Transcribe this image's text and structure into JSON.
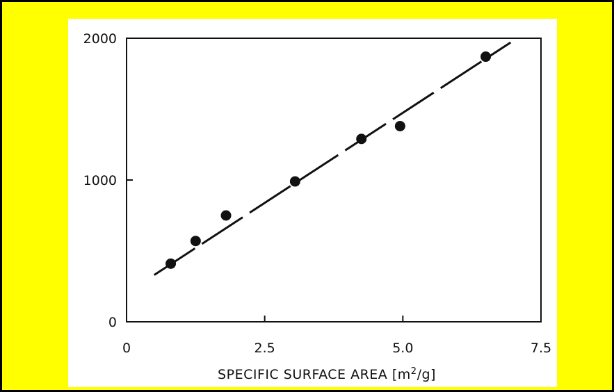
{
  "colors": {
    "background": "#ffff00",
    "plot_background": "#ffffff",
    "ink": "#111111"
  },
  "chart_data": {
    "type": "scatter",
    "xlabel_prefix": "SPECIFIC SURFACE AREA [m",
    "xlabel_sup": "2",
    "xlabel_suffix": "/g]",
    "ylabel": "",
    "xlim": [
      0,
      7.5
    ],
    "ylim": [
      0,
      2000
    ],
    "x_ticks": [
      "0",
      "2.5",
      "5.0",
      "7.5"
    ],
    "y_ticks": [
      "0",
      "1000",
      "2000"
    ],
    "grid": false,
    "points": [
      {
        "x": 0.8,
        "y": 410
      },
      {
        "x": 1.25,
        "y": 570
      },
      {
        "x": 1.8,
        "y": 750
      },
      {
        "x": 3.05,
        "y": 990
      },
      {
        "x": 4.25,
        "y": 1290
      },
      {
        "x": 4.95,
        "y": 1380
      },
      {
        "x": 6.5,
        "y": 1870
      }
    ],
    "fit_line": {
      "style": "dashed",
      "x": [
        0.5,
        6.95
      ],
      "y": [
        330,
        1970
      ]
    }
  }
}
